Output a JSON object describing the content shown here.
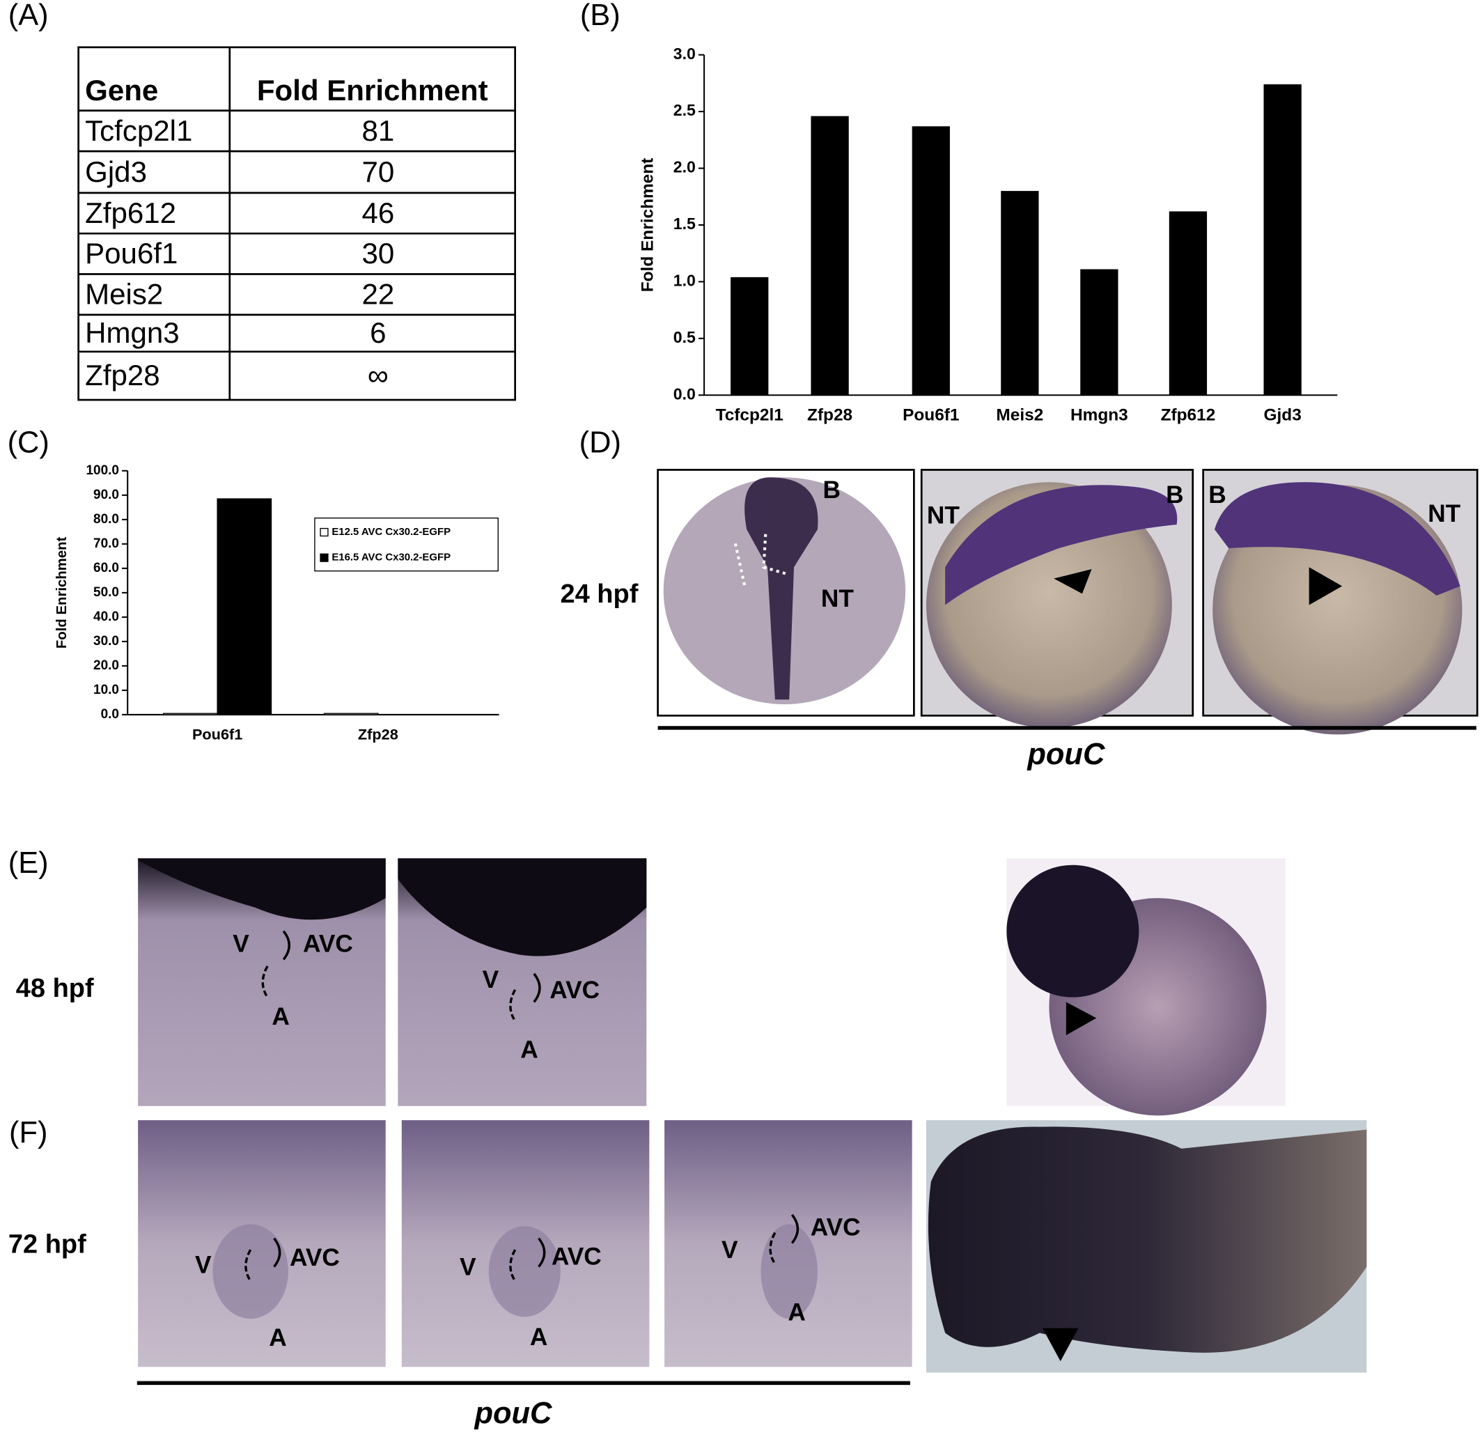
{
  "panel_labels": [
    "(A)",
    "(B)",
    "(C)",
    "(D)",
    "(E)",
    "(F)"
  ],
  "table": {
    "header": [
      "Gene",
      "Fold Enrichment"
    ],
    "rows": [
      [
        "Tcfcp2l1",
        81
      ],
      [
        "Gjd3",
        70
      ],
      [
        "Zfp612",
        46
      ],
      [
        "Pou6f1",
        30
      ],
      [
        "Meis2",
        22
      ],
      [
        "Hmgn3",
        6
      ],
      [
        "Zfp28",
        "∞"
      ]
    ]
  },
  "chart_data": [
    {
      "type": "bar",
      "y_label": "Fold Enrichment",
      "categories": [
        "Tcfcp2l1",
        "Zfp28",
        "Pou6f1",
        "Meis2",
        "Hmgn3",
        "Zfp612",
        "Gjd3"
      ],
      "values": [
        1.04,
        2.46,
        2.37,
        1.8,
        1.11,
        1.62,
        2.74
      ],
      "color": "#000000",
      "ylim": [
        0,
        3
      ],
      "yticks": [
        {
          "value": 0,
          "label": "0.0"
        },
        {
          "value": 0.5,
          "label": "0.5"
        },
        {
          "value": 1,
          "label": "1.0"
        },
        {
          "value": 1.5,
          "label": "1.5"
        },
        {
          "value": 2,
          "label": "2.0"
        },
        {
          "value": 2.5,
          "label": "2.5"
        },
        {
          "value": 3,
          "label": "3.0"
        }
      ]
    },
    {
      "type": "grouped_bar",
      "y_label": "Fold Enrichment",
      "categories": [
        "Pou6f1",
        "Zfp28"
      ],
      "series": [
        {
          "name": "E12.5 AVC Cx30.2-EGFP",
          "color": "#ffffff",
          "values": [
            0.5,
            0.5
          ]
        },
        {
          "name": "E16.5 AVC Cx30.2-EGFP",
          "color": "#000000",
          "values": [
            88.5,
            0
          ]
        }
      ],
      "ylim": [
        0,
        100
      ],
      "yticks": [
        {
          "value": 0,
          "label": "0.0"
        },
        {
          "value": 10,
          "label": "10.0"
        },
        {
          "value": 20,
          "label": "20.0"
        },
        {
          "value": 30,
          "label": "30.0"
        },
        {
          "value": 40,
          "label": "40.0"
        },
        {
          "value": 50,
          "label": "50.0"
        },
        {
          "value": 60,
          "label": "60.0"
        },
        {
          "value": 70,
          "label": "70.0"
        },
        {
          "value": 80,
          "label": "80.0"
        },
        {
          "value": 90,
          "label": "90.0"
        },
        {
          "value": 100,
          "label": "100.0"
        }
      ]
    }
  ],
  "panel_d": {
    "stage": "24 hpf",
    "labels": [
      "B",
      "NT",
      "NT",
      "B",
      "B",
      "NT"
    ],
    "gene": "pouC"
  },
  "panel_e": {
    "stage": "48 hpf",
    "labels": [
      "V",
      "AVC",
      "A",
      "V",
      "AVC",
      "A"
    ]
  },
  "panel_f": {
    "stage": "72 hpf",
    "labels": [
      "V",
      "AVC",
      "A",
      "V",
      "AVC",
      "A",
      "V",
      "AVC",
      "A"
    ],
    "gene": "pouC"
  }
}
